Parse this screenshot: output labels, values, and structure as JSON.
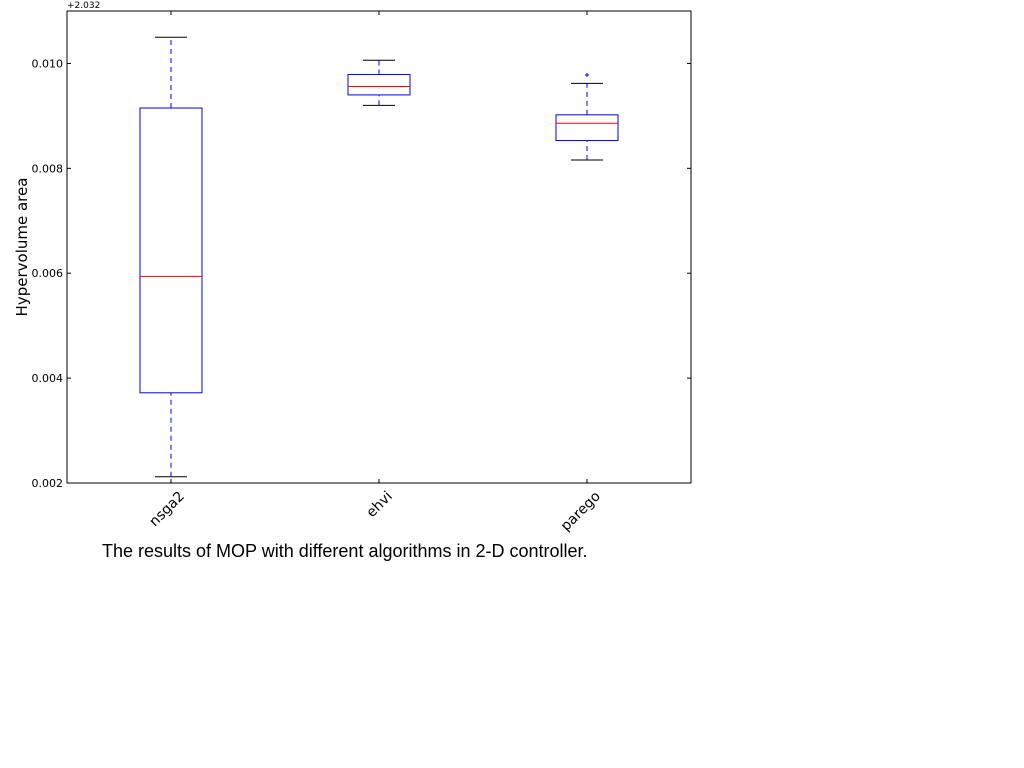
{
  "chart_data": {
    "type": "box",
    "categories": [
      "nsga2",
      "ehvi",
      "parego"
    ],
    "ylabel": "Hypervolume area",
    "xlabel": "",
    "y_offset_label": "+2.032",
    "ylim": [
      0.002,
      0.011
    ],
    "yticks": [
      0.002,
      0.004,
      0.006,
      0.008,
      0.01
    ],
    "ytick_labels": [
      "0.002",
      "0.004",
      "0.006",
      "0.008",
      "0.010"
    ],
    "grid": false,
    "series": [
      {
        "category": "nsga2",
        "whisker_low": 0.00212,
        "q1": 0.00372,
        "median": 0.00594,
        "q3": 0.00915,
        "whisker_high": 0.0105,
        "outliers": []
      },
      {
        "category": "ehvi",
        "whisker_low": 0.0092,
        "q1": 0.0094,
        "median": 0.00956,
        "q3": 0.00979,
        "whisker_high": 0.01006,
        "outliers": []
      },
      {
        "category": "parego",
        "whisker_low": 0.00816,
        "q1": 0.00853,
        "median": 0.00886,
        "q3": 0.00902,
        "whisker_high": 0.00962,
        "outliers": [
          0.00978
        ]
      }
    ],
    "colors": {
      "box": "#0000ff",
      "median": "#ff0000",
      "whisker": "#0000ff",
      "cap": "#000000",
      "flier": "#0000ff"
    }
  },
  "caption": "The results of MOP with different algorithms in 2-D controller."
}
